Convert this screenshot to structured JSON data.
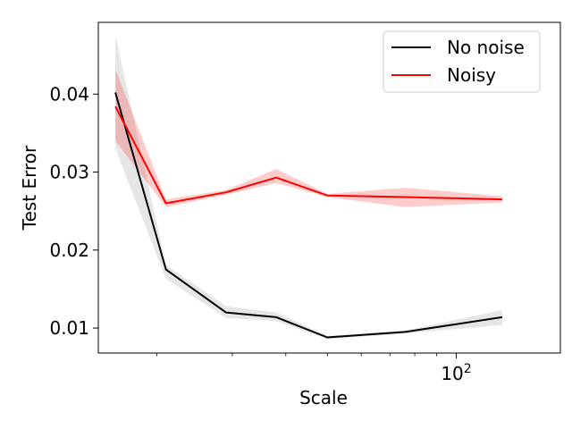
{
  "chart_data": {
    "type": "line",
    "xscale": "log",
    "xlabel": "Scale",
    "ylabel": "Test Error",
    "xlim": [
      14.6,
      175
    ],
    "ylim": [
      0.0068,
      0.0492
    ],
    "x_ticks": [
      {
        "value": 100,
        "base": "10",
        "exp": "2"
      }
    ],
    "x_minor_ticks": [
      20,
      30,
      40,
      50,
      60,
      70,
      80,
      90
    ],
    "y_ticks": [
      {
        "value": 0.01,
        "label": "0.01"
      },
      {
        "value": 0.02,
        "label": "0.02"
      },
      {
        "value": 0.03,
        "label": "0.03"
      },
      {
        "value": 0.04,
        "label": "0.04"
      }
    ],
    "legend": {
      "placement": "top-right"
    },
    "series": [
      {
        "name": "No noise",
        "color": "#000000",
        "band_color": "#808080",
        "x": [
          16,
          21,
          29,
          38,
          50,
          76,
          128
        ],
        "y": [
          0.0402,
          0.0175,
          0.012,
          0.0114,
          0.0088,
          0.0095,
          0.0114
        ],
        "lower": [
          0.033,
          0.0163,
          0.0113,
          0.0109,
          0.0086,
          0.0093,
          0.0104
        ],
        "upper": [
          0.0475,
          0.0181,
          0.0128,
          0.012,
          0.009,
          0.0097,
          0.0123
        ]
      },
      {
        "name": "Noisy",
        "color": "#ff0000",
        "band_color": "#ff0000",
        "x": [
          16,
          21,
          29,
          38,
          50,
          76,
          128
        ],
        "y": [
          0.0384,
          0.026,
          0.0274,
          0.0293,
          0.027,
          0.0268,
          0.0265
        ],
        "lower": [
          0.034,
          0.0255,
          0.0271,
          0.0286,
          0.0268,
          0.0255,
          0.0261
        ],
        "upper": [
          0.0432,
          0.0265,
          0.0277,
          0.0304,
          0.0272,
          0.028,
          0.0269
        ]
      }
    ]
  }
}
